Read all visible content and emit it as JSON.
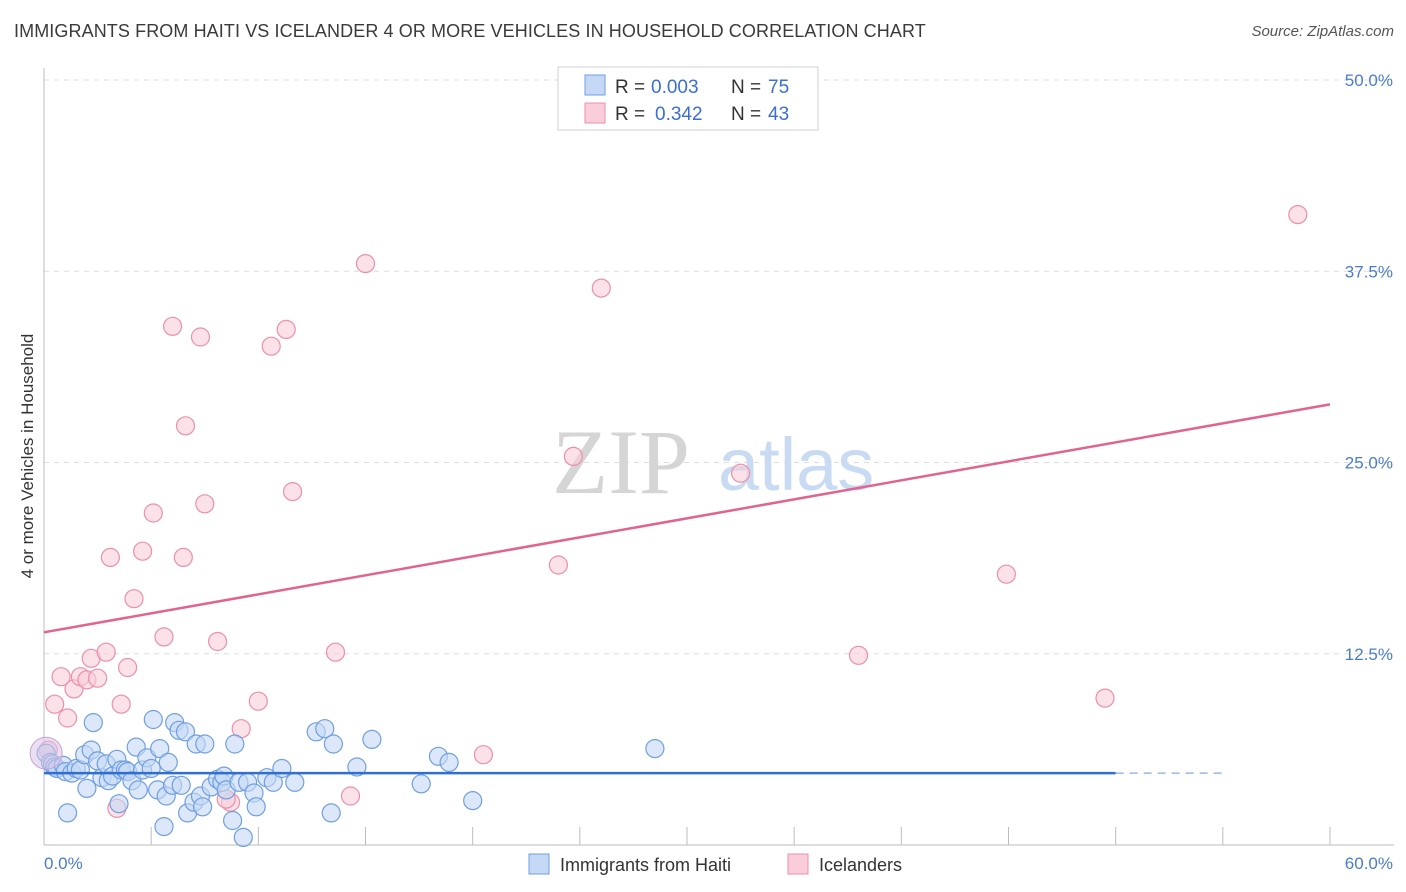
{
  "title": "IMMIGRANTS FROM HAITI VS ICELANDER 4 OR MORE VEHICLES IN HOUSEHOLD CORRELATION CHART",
  "source": "Source: ZipAtlas.com",
  "watermark": {
    "zip": "ZIP",
    "atlas": "atlas"
  },
  "colors": {
    "haiti_fill": "#c5d8f5",
    "haiti_stroke": "#6f9fe0",
    "haiti_line": "#2f6fd0",
    "iceland_fill": "#f9cdd9",
    "iceland_stroke": "#ec8fab",
    "iceland_line": "#e0648f",
    "grid": "#dedede",
    "tick_text": "#4a7cc9"
  },
  "legend": {
    "rows": [
      {
        "r_label": "R =",
        "r_value": "0.003",
        "n_label": "N =",
        "n_value": "75"
      },
      {
        "r_label": "R =",
        "r_value": "0.342",
        "n_label": "N =",
        "n_value": "43"
      }
    ]
  },
  "chart_data": {
    "type": "scatter",
    "title": "IMMIGRANTS FROM HAITI VS ICELANDER 4 OR MORE VEHICLES IN HOUSEHOLD CORRELATION CHART",
    "xlabel": "",
    "ylabel": "4 or more Vehicles in Household",
    "xlim": [
      0,
      60
    ],
    "ylim": [
      0,
      50
    ],
    "x_tick_labels": [
      "0.0%",
      "60.0%"
    ],
    "y_ticks": [
      12.5,
      25.0,
      37.5,
      50.0
    ],
    "y_tick_labels": [
      "12.5%",
      "25.0%",
      "37.5%",
      "50.0%"
    ],
    "grid": true,
    "legend_position": "bottom-center",
    "series": [
      {
        "name": "Immigrants from Haiti",
        "R": 0.003,
        "N": 75,
        "trend": {
          "x0": 0,
          "y0": 4.7,
          "x1": 50,
          "y1": 4.7,
          "dashed_to": 55
        },
        "points": [
          [
            0.1,
            6.0
          ],
          [
            0.3,
            5.4
          ],
          [
            0.4,
            5.3
          ],
          [
            0.5,
            5.1
          ],
          [
            0.6,
            5.0
          ],
          [
            0.9,
            5.2
          ],
          [
            1.0,
            4.8
          ],
          [
            1.1,
            2.1
          ],
          [
            1.3,
            4.7
          ],
          [
            1.5,
            5.0
          ],
          [
            1.7,
            4.9
          ],
          [
            1.9,
            5.9
          ],
          [
            2.0,
            3.7
          ],
          [
            2.2,
            6.2
          ],
          [
            2.3,
            8.0
          ],
          [
            2.5,
            5.5
          ],
          [
            2.7,
            4.4
          ],
          [
            2.9,
            5.3
          ],
          [
            3.0,
            4.2
          ],
          [
            3.2,
            4.5
          ],
          [
            3.4,
            5.6
          ],
          [
            3.5,
            2.7
          ],
          [
            3.6,
            4.9
          ],
          [
            3.8,
            4.9
          ],
          [
            3.9,
            4.8
          ],
          [
            4.1,
            4.2
          ],
          [
            4.3,
            6.4
          ],
          [
            4.4,
            3.6
          ],
          [
            4.6,
            4.9
          ],
          [
            4.8,
            5.7
          ],
          [
            5.0,
            5.0
          ],
          [
            5.1,
            8.2
          ],
          [
            5.3,
            3.6
          ],
          [
            5.4,
            6.3
          ],
          [
            5.6,
            1.2
          ],
          [
            5.7,
            3.2
          ],
          [
            5.8,
            5.4
          ],
          [
            6.0,
            3.9
          ],
          [
            6.1,
            8.0
          ],
          [
            6.3,
            7.5
          ],
          [
            6.4,
            3.9
          ],
          [
            6.6,
            7.4
          ],
          [
            6.7,
            2.1
          ],
          [
            7.0,
            2.8
          ],
          [
            7.1,
            6.6
          ],
          [
            7.3,
            3.2
          ],
          [
            7.4,
            2.5
          ],
          [
            7.5,
            6.6
          ],
          [
            7.8,
            3.8
          ],
          [
            8.1,
            4.3
          ],
          [
            8.3,
            4.1
          ],
          [
            8.4,
            4.5
          ],
          [
            8.5,
            3.6
          ],
          [
            8.8,
            1.6
          ],
          [
            8.9,
            6.6
          ],
          [
            9.1,
            4.1
          ],
          [
            9.3,
            0.5
          ],
          [
            9.5,
            4.1
          ],
          [
            9.8,
            3.4
          ],
          [
            9.9,
            2.5
          ],
          [
            10.4,
            4.4
          ],
          [
            10.7,
            4.1
          ],
          [
            11.1,
            5.0
          ],
          [
            11.7,
            4.1
          ],
          [
            12.7,
            7.4
          ],
          [
            13.1,
            7.6
          ],
          [
            13.4,
            2.1
          ],
          [
            13.5,
            6.6
          ],
          [
            14.6,
            5.1
          ],
          [
            15.3,
            6.9
          ],
          [
            17.6,
            4.0
          ],
          [
            18.4,
            5.8
          ],
          [
            18.9,
            5.4
          ],
          [
            20.0,
            2.9
          ],
          [
            28.5,
            6.3
          ]
        ]
      },
      {
        "name": "Icelanders",
        "R": 0.342,
        "N": 43,
        "trend": {
          "x0": 0,
          "y0": 13.9,
          "x1": 60,
          "y1": 28.8
        },
        "points": [
          [
            0.5,
            9.2
          ],
          [
            0.8,
            11.0
          ],
          [
            1.1,
            8.3
          ],
          [
            1.4,
            10.2
          ],
          [
            1.7,
            11.0
          ],
          [
            2.0,
            10.8
          ],
          [
            2.2,
            12.2
          ],
          [
            2.5,
            10.9
          ],
          [
            2.9,
            12.6
          ],
          [
            3.1,
            18.8
          ],
          [
            3.4,
            2.4
          ],
          [
            3.6,
            9.2
          ],
          [
            3.9,
            11.6
          ],
          [
            4.2,
            16.1
          ],
          [
            4.6,
            19.2
          ],
          [
            5.1,
            21.7
          ],
          [
            5.6,
            13.6
          ],
          [
            6.0,
            33.9
          ],
          [
            6.5,
            18.8
          ],
          [
            6.6,
            27.4
          ],
          [
            7.3,
            33.2
          ],
          [
            7.5,
            22.3
          ],
          [
            8.1,
            13.3
          ],
          [
            8.7,
            2.8
          ],
          [
            9.2,
            7.6
          ],
          [
            10.0,
            9.4
          ],
          [
            10.6,
            32.6
          ],
          [
            11.3,
            33.7
          ],
          [
            11.6,
            23.1
          ],
          [
            13.6,
            12.6
          ],
          [
            14.3,
            3.2
          ],
          [
            15.0,
            38.0
          ],
          [
            20.5,
            5.9
          ],
          [
            24.0,
            18.3
          ],
          [
            24.7,
            25.4
          ],
          [
            26.0,
            36.4
          ],
          [
            32.5,
            24.3
          ],
          [
            38.0,
            12.4
          ],
          [
            44.9,
            17.7
          ],
          [
            49.5,
            9.6
          ],
          [
            58.5,
            41.2
          ],
          [
            0.2,
            6.2
          ],
          [
            8.5,
            3.0
          ]
        ]
      }
    ]
  },
  "bottom_legend": [
    "Immigrants from Haiti",
    "Icelanders"
  ]
}
